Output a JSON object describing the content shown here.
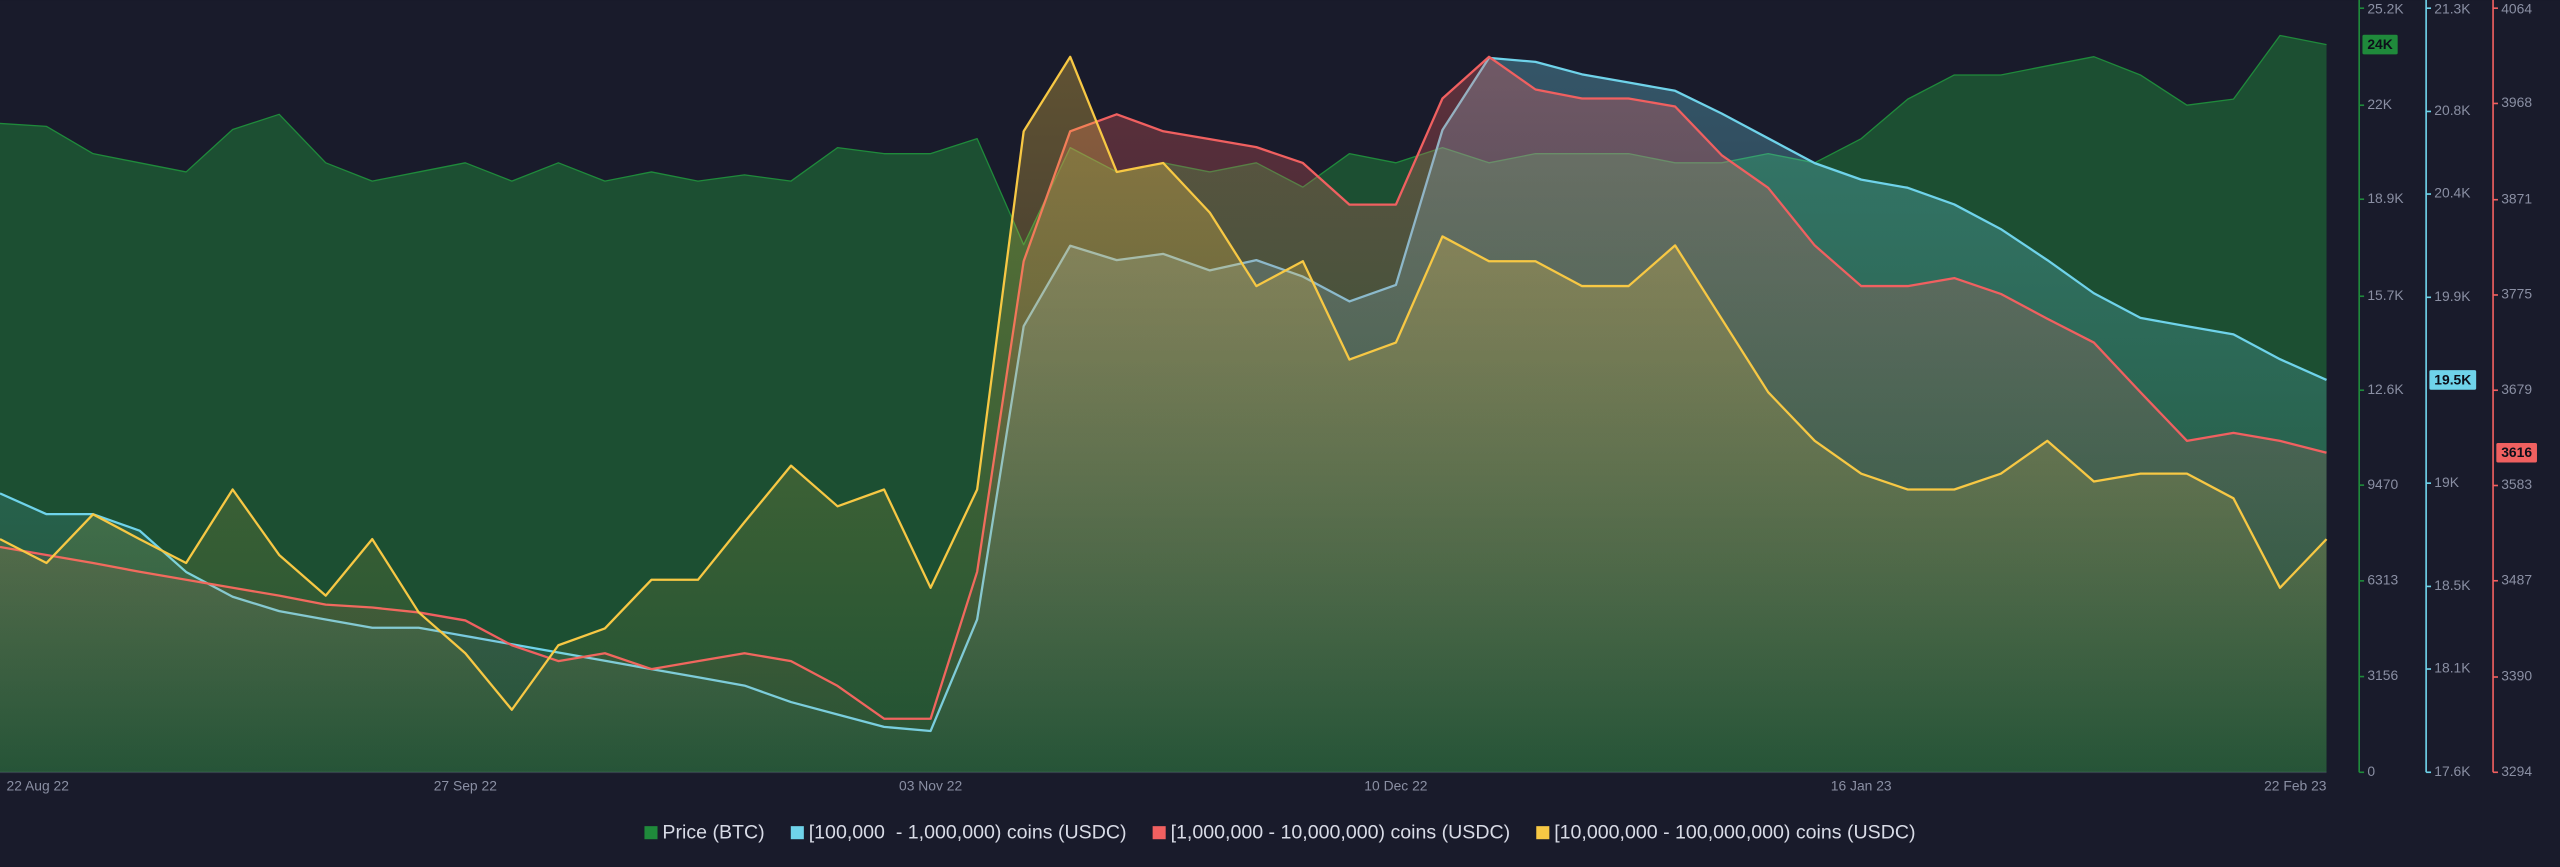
{
  "chart_data": {
    "type": "area",
    "categories": [
      "22 Aug 22",
      null,
      null,
      null,
      null,
      null,
      null,
      null,
      null,
      null,
      "27 Sep 22",
      null,
      null,
      null,
      null,
      null,
      null,
      null,
      null,
      null,
      "03 Nov 22",
      null,
      null,
      null,
      null,
      null,
      null,
      null,
      null,
      null,
      "10 Dec 22",
      null,
      null,
      null,
      null,
      null,
      null,
      null,
      null,
      null,
      "16 Jan 23",
      null,
      null,
      null,
      null,
      null,
      null,
      null,
      null,
      null,
      "22 Feb 23"
    ],
    "series": [
      {
        "name": "Price (BTC)",
        "color": "#1f8a3b",
        "axis": "y",
        "last_label": "24K",
        "values": [
          21400,
          21300,
          20400,
          20100,
          19800,
          21200,
          21700,
          20100,
          19500,
          19800,
          20100,
          19500,
          20100,
          19500,
          19800,
          19500,
          19700,
          19500,
          20600,
          20400,
          20400,
          20900,
          17400,
          20600,
          19800,
          20100,
          19800,
          20100,
          19300,
          20400,
          20100,
          20600,
          20100,
          20400,
          20400,
          20400,
          20100,
          20100,
          20400,
          20100,
          20900,
          22200,
          23000,
          23000,
          23300,
          23600,
          23000,
          22000,
          22200,
          24300,
          24000
        ]
      },
      {
        "name": "[100,000  - 1,000,000) coins (USDC)",
        "color": "#6fd3ea",
        "axis": "y2",
        "last_label": "19.5K",
        "values": [
          18950,
          18850,
          18850,
          18770,
          18570,
          18450,
          18380,
          18340,
          18300,
          18300,
          18260,
          18220,
          18180,
          18140,
          18100,
          18060,
          18020,
          17940,
          17880,
          17820,
          17800,
          18340,
          19760,
          20150,
          20080,
          20110,
          20030,
          20080,
          20000,
          19880,
          19960,
          20710,
          21060,
          21040,
          20980,
          20940,
          20900,
          20790,
          20670,
          20550,
          20470,
          20430,
          20350,
          20230,
          20080,
          19920,
          19800,
          19760,
          19720,
          19600,
          19500
        ]
      },
      {
        "name": "[1,000,000 - 10,000,000) coins (USDC)",
        "color": "#f06060",
        "axis": "y3",
        "values": [
          3521,
          3513,
          3505,
          3496,
          3488,
          3480,
          3472,
          3463,
          3460,
          3455,
          3447,
          3422,
          3406,
          3414,
          3398,
          3406,
          3414,
          3406,
          3381,
          3348,
          3348,
          3496,
          3809,
          3940,
          3957,
          3940,
          3932,
          3924,
          3908,
          3866,
          3866,
          3973,
          4015,
          3982,
          3973,
          3973,
          3965,
          3916,
          3883,
          3825,
          3784,
          3784,
          3792,
          3776,
          3751,
          3727,
          3677,
          3628,
          3636,
          3628,
          3616
        ]
      },
      {
        "name": "[10,000,000 - 100,000,000) coins (USDC)",
        "color": "#f7c844",
        "axis": "y3",
        "values": [
          3529,
          3505,
          3554,
          3529,
          3505,
          3579,
          3513,
          3472,
          3529,
          3455,
          3414,
          3357,
          3422,
          3439,
          3488,
          3488,
          3546,
          3603,
          3562,
          3579,
          3480,
          3579,
          3940,
          4015,
          3899,
          3908,
          3858,
          3784,
          3809,
          3710,
          3727,
          3834,
          3809,
          3809,
          3784,
          3784,
          3825,
          3751,
          3677,
          3628,
          3595,
          3579,
          3579,
          3595,
          3628,
          3587,
          3595,
          3595,
          3570,
          3480,
          3529
        ]
      }
    ],
    "ylim": [
      0,
      25200
    ],
    "yticks": [
      0,
      3156,
      6313,
      9470,
      {
        "value": 12600,
        "label": "12.6K"
      },
      {
        "value": 15700,
        "label": "15.7K"
      },
      {
        "value": 18900,
        "label": "18.9K"
      },
      {
        "value": 22000,
        "label": "22K"
      },
      {
        "value": 25200,
        "label": "25.2K"
      }
    ],
    "y2lim": [
      17600,
      21300
    ],
    "y2ticks": [
      {
        "value": 17600,
        "label": "17.6K"
      },
      {
        "value": 18100,
        "label": "18.1K"
      },
      {
        "value": 18500,
        "label": "18.5K"
      },
      {
        "value": 19000,
        "label": "19K"
      },
      {
        "value": 19900,
        "label": "19.9K"
      },
      {
        "value": 20400,
        "label": "20.4K"
      },
      {
        "value": 20800,
        "label": "20.8K"
      },
      {
        "value": 21300,
        "label": "21.3K"
      }
    ],
    "y3lim": [
      3294,
      4064
    ],
    "y3ticks": [
      3294,
      3390,
      3487,
      3583,
      3679,
      3775,
      3871,
      3968,
      4064
    ]
  }
}
